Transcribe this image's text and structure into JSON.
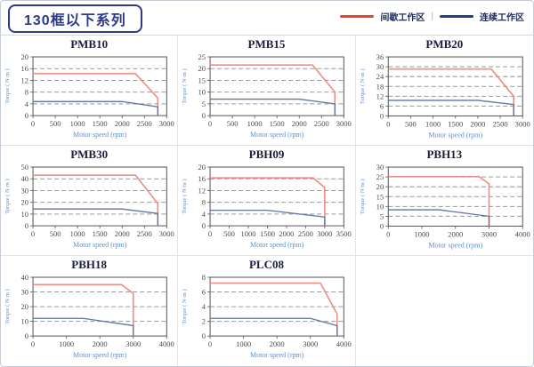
{
  "page": {
    "title": "130框以下系列",
    "legend": {
      "intermittent_label": "间歇工作区",
      "continuous_label": "连续工作区",
      "separator": "|",
      "intermittent_color": "#e8432c",
      "continuous_color": "#1f3f7f"
    }
  },
  "colors": {
    "title_navy": "#2e3a87",
    "chart_red": "#ef8d82",
    "chart_blue": "#5f74a3",
    "grid_gray": "#999999",
    "axis_dark": "#555555",
    "tick_text": "#4a4a4a",
    "axis_label_blue": "#5b8fd0"
  },
  "chart_data": [
    {
      "type": "line",
      "title": "PMB10",
      "xlabel": "Motor speed (rpm)",
      "ylabel": "Torque ( N·m )",
      "xlim": [
        0,
        3000
      ],
      "ylim": [
        0,
        20
      ],
      "xticks": [
        0,
        500,
        1000,
        1500,
        2000,
        2500,
        3000
      ],
      "yticks": [
        0,
        4,
        8,
        12,
        16,
        20
      ],
      "grid": "dashed-horizontal",
      "legend_position": "none",
      "series": [
        {
          "name": "间歇工作区",
          "color": "red",
          "points": [
            [
              0,
              14.3
            ],
            [
              2300,
              14.3
            ],
            [
              2800,
              6
            ],
            [
              2800,
              0
            ]
          ]
        },
        {
          "name": "连续工作区",
          "color": "blue",
          "points": [
            [
              0,
              4.8
            ],
            [
              2000,
              4.8
            ],
            [
              2800,
              3
            ],
            [
              2800,
              0
            ]
          ]
        }
      ]
    },
    {
      "type": "line",
      "title": "PMB15",
      "xlabel": "Motor speed (rpm)",
      "ylabel": "Torque ( N·m )",
      "xlim": [
        0,
        3000
      ],
      "ylim": [
        0,
        25
      ],
      "xticks": [
        0,
        500,
        1000,
        1500,
        2000,
        2500,
        3000
      ],
      "yticks": [
        0,
        5,
        10,
        15,
        20,
        25
      ],
      "grid": "dashed-horizontal",
      "legend_position": "none",
      "series": [
        {
          "name": "间歇工作区",
          "color": "red",
          "points": [
            [
              0,
              21.5
            ],
            [
              2300,
              21.5
            ],
            [
              2800,
              10
            ],
            [
              2800,
              0
            ]
          ]
        },
        {
          "name": "连续工作区",
          "color": "blue",
          "points": [
            [
              0,
              7
            ],
            [
              2000,
              7
            ],
            [
              2800,
              5
            ],
            [
              2800,
              0
            ]
          ]
        }
      ]
    },
    {
      "type": "line",
      "title": "PMB20",
      "xlabel": "Motor speed (rpm)",
      "ylabel": "Torque ( N·m )",
      "xlim": [
        0,
        3000
      ],
      "ylim": [
        0,
        36
      ],
      "xticks": [
        0,
        500,
        1000,
        1500,
        2000,
        2500,
        3000
      ],
      "yticks": [
        0,
        6,
        12,
        18,
        24,
        30,
        36
      ],
      "grid": "dashed-horizontal",
      "legend_position": "none",
      "series": [
        {
          "name": "间歇工作区",
          "color": "red",
          "points": [
            [
              0,
              28.6
            ],
            [
              2300,
              28.6
            ],
            [
              2800,
              12
            ],
            [
              2800,
              0
            ]
          ]
        },
        {
          "name": "连续工作区",
          "color": "blue",
          "points": [
            [
              0,
              9.5
            ],
            [
              2000,
              9.5
            ],
            [
              2800,
              7
            ],
            [
              2800,
              0
            ]
          ]
        }
      ]
    },
    {
      "type": "line",
      "title": "PMB30",
      "xlabel": "Motor speed (rpm)",
      "ylabel": "Torque ( N·m )",
      "xlim": [
        0,
        3000
      ],
      "ylim": [
        0,
        50
      ],
      "xticks": [
        0,
        500,
        1000,
        1500,
        2000,
        2500,
        3000
      ],
      "yticks": [
        0,
        10,
        20,
        30,
        40,
        50
      ],
      "grid": "dashed-horizontal",
      "legend_position": "none",
      "series": [
        {
          "name": "间歇工作区",
          "color": "red",
          "points": [
            [
              0,
              43
            ],
            [
              2300,
              43
            ],
            [
              2800,
              19
            ],
            [
              2800,
              0
            ]
          ]
        },
        {
          "name": "连续工作区",
          "color": "blue",
          "points": [
            [
              0,
              14.3
            ],
            [
              2000,
              14.3
            ],
            [
              2800,
              10.5
            ],
            [
              2800,
              0
            ]
          ]
        }
      ]
    },
    {
      "type": "line",
      "title": "PBH09",
      "xlabel": "Motor speed (rpm)",
      "ylabel": "Torque ( N·m )",
      "xlim": [
        0,
        3500
      ],
      "ylim": [
        0,
        20
      ],
      "xticks": [
        0,
        500,
        1000,
        1500,
        2000,
        2500,
        3000,
        3500
      ],
      "yticks": [
        0,
        4,
        8,
        12,
        16,
        20
      ],
      "grid": "dashed-horizontal",
      "legend_position": "none",
      "series": [
        {
          "name": "间歇工作区",
          "color": "red",
          "points": [
            [
              0,
              16.3
            ],
            [
              2700,
              16.3
            ],
            [
              3000,
              13
            ],
            [
              3000,
              0
            ]
          ]
        },
        {
          "name": "连续工作区",
          "color": "blue",
          "points": [
            [
              0,
              5.3
            ],
            [
              1500,
              5.3
            ],
            [
              3000,
              3
            ],
            [
              3000,
              0
            ]
          ]
        }
      ]
    },
    {
      "type": "line",
      "title": "PBH13",
      "xlabel": "Motor speed (rpm)",
      "ylabel": "Torque ( N·m )",
      "xlim": [
        0,
        4000
      ],
      "ylim": [
        0,
        30
      ],
      "xticks": [
        0,
        1000,
        2000,
        3000,
        4000
      ],
      "yticks": [
        0,
        5,
        10,
        15,
        20,
        25,
        30
      ],
      "grid": "dashed-horizontal",
      "legend_position": "none",
      "series": [
        {
          "name": "间歇工作区",
          "color": "red",
          "points": [
            [
              0,
              25.2
            ],
            [
              2700,
              25.2
            ],
            [
              3000,
              21.5
            ],
            [
              3000,
              0
            ]
          ]
        },
        {
          "name": "连续工作区",
          "color": "blue",
          "points": [
            [
              0,
              8.3
            ],
            [
              1500,
              8.3
            ],
            [
              3000,
              5
            ],
            [
              3000,
              0
            ]
          ]
        }
      ]
    },
    {
      "type": "line",
      "title": "PBH18",
      "xlabel": "Motor speed (rpm)",
      "ylabel": "Torque ( N·m )",
      "xlim": [
        0,
        4000
      ],
      "ylim": [
        0,
        40
      ],
      "xticks": [
        0,
        1000,
        2000,
        3000,
        4000
      ],
      "yticks": [
        0,
        10,
        20,
        30,
        40
      ],
      "grid": "dashed-horizontal",
      "legend_position": "none",
      "series": [
        {
          "name": "间歇工作区",
          "color": "red",
          "points": [
            [
              0,
              35
            ],
            [
              2650,
              35
            ],
            [
              3000,
              29
            ],
            [
              3000,
              0
            ]
          ]
        },
        {
          "name": "连续工作区",
          "color": "blue",
          "points": [
            [
              0,
              12
            ],
            [
              1500,
              12
            ],
            [
              3000,
              7
            ],
            [
              3000,
              0
            ]
          ]
        }
      ]
    },
    {
      "type": "line",
      "title": "PLC08",
      "xlabel": "Motor speed (rpm)",
      "ylabel": "Torque ( N·m )",
      "xlim": [
        0,
        4000
      ],
      "ylim": [
        0,
        8
      ],
      "xticks": [
        0,
        1000,
        2000,
        3000,
        4000
      ],
      "yticks": [
        0,
        2,
        4,
        6,
        8
      ],
      "grid": "dashed-horizontal",
      "legend_position": "none",
      "series": [
        {
          "name": "间歇工作区",
          "color": "red",
          "points": [
            [
              0,
              7.2
            ],
            [
              3300,
              7.2
            ],
            [
              3800,
              3
            ],
            [
              3800,
              0
            ]
          ]
        },
        {
          "name": "连续工作区",
          "color": "blue",
          "points": [
            [
              0,
              2.4
            ],
            [
              3000,
              2.4
            ],
            [
              3800,
              1.4
            ],
            [
              3800,
              0
            ]
          ]
        }
      ]
    }
  ]
}
